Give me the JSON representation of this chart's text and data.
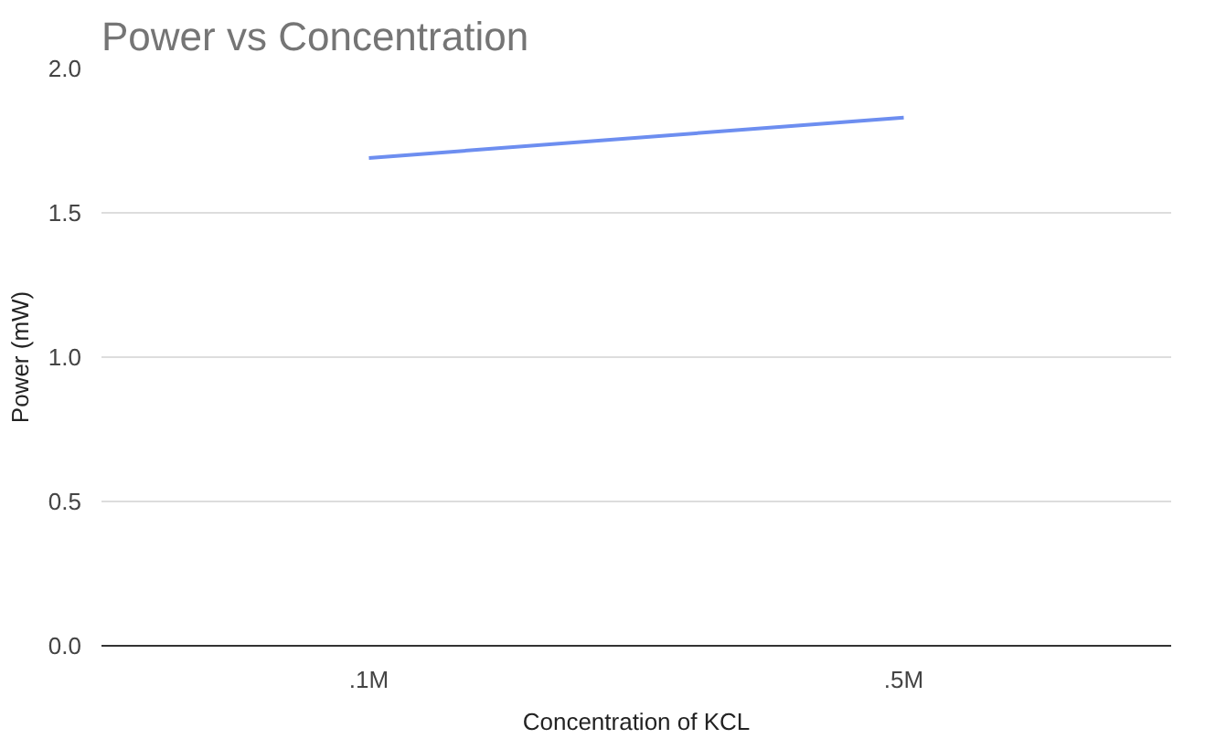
{
  "chart_data": {
    "type": "line",
    "title": "Power vs Concentration",
    "xlabel": "Concentration of KCL",
    "ylabel": "Power (mW)",
    "categories": [
      ".1M",
      ".5M"
    ],
    "series": [
      {
        "color": "#6d8ef0",
        "values": [
          1.69,
          1.83
        ]
      }
    ],
    "ylim": [
      0,
      2.0
    ],
    "yticks": [
      {
        "value": 0,
        "label": "0.0"
      },
      {
        "value": 0.5,
        "label": "0.5"
      },
      {
        "value": 1.0,
        "label": "1.0"
      },
      {
        "value": 1.5,
        "label": "1.5"
      },
      {
        "value": 2.0,
        "label": "2.0"
      }
    ],
    "grid": "y",
    "marker": "none",
    "line_style": "solid"
  }
}
